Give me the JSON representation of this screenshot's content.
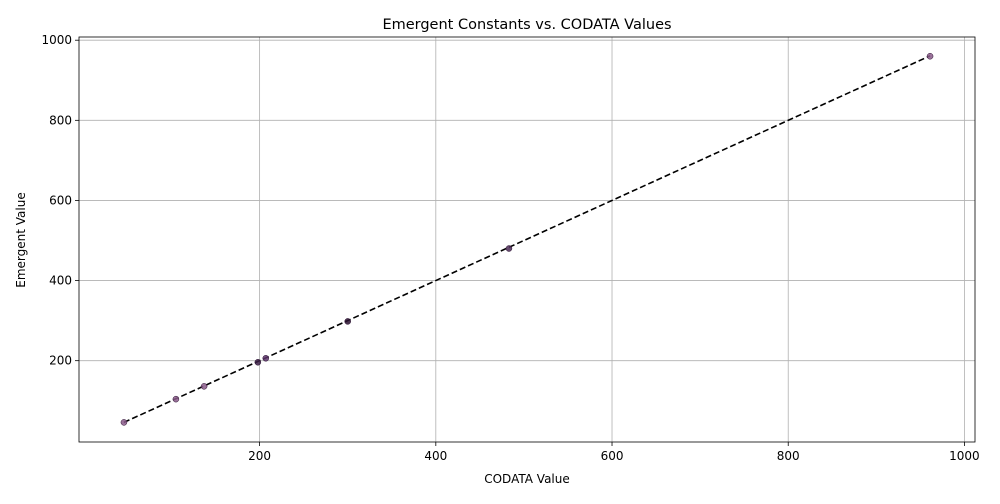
{
  "chart_data": {
    "type": "scatter",
    "title": "Emergent Constants vs. CODATA Values",
    "xlabel": "CODATA Value",
    "ylabel": "Emergent Value",
    "xlim": [
      -5,
      1012
    ],
    "ylim": [
      -3,
      1008
    ],
    "xticks": [
      200,
      400,
      600,
      800,
      1000
    ],
    "yticks": [
      200,
      400,
      600,
      800,
      1000
    ],
    "grid": true,
    "points": [
      {
        "x": 46,
        "y": 46,
        "color": "#8a5a8a"
      },
      {
        "x": 105,
        "y": 104,
        "color": "#8a5a8a"
      },
      {
        "x": 137,
        "y": 136,
        "color": "#8a5a8a"
      },
      {
        "x": 198,
        "y": 196,
        "color": "#3b1f45"
      },
      {
        "x": 207,
        "y": 206,
        "color": "#5a3268"
      },
      {
        "x": 300,
        "y": 298,
        "color": "#2a1030"
      },
      {
        "x": 483,
        "y": 480,
        "color": "#4a2a55"
      },
      {
        "x": 961,
        "y": 960,
        "color": "#8a5a8a"
      }
    ],
    "reference_line": {
      "x": [
        46,
        961
      ],
      "y": [
        46,
        961
      ],
      "style": "dashed",
      "color": "#000000"
    }
  }
}
